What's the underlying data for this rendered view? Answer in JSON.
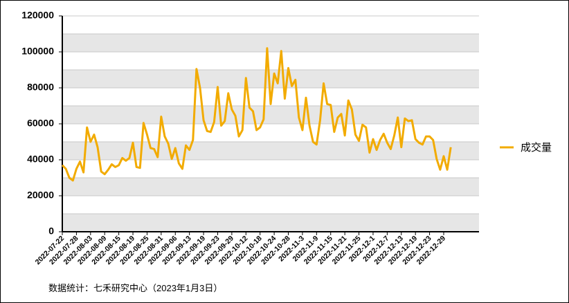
{
  "chart_data": {
    "type": "line",
    "categories": [
      "2022-07-22",
      null,
      null,
      null,
      "2022-07-28",
      null,
      null,
      null,
      "2022-08-03",
      null,
      null,
      null,
      "2022-08-09",
      null,
      null,
      null,
      "2022-08-15",
      null,
      null,
      null,
      "2022-08-19",
      null,
      null,
      null,
      "2022-08-25",
      null,
      null,
      null,
      "2022-08-31",
      null,
      null,
      null,
      "2022-09-06",
      null,
      null,
      null,
      "2022-09-13",
      null,
      null,
      null,
      "2022-09-19",
      null,
      null,
      null,
      "2022-09-23",
      null,
      null,
      null,
      "2022-09-29",
      null,
      null,
      null,
      "2022-10-12",
      null,
      null,
      null,
      "2022-10-18",
      null,
      null,
      null,
      "2022-10-24",
      null,
      null,
      null,
      "2022-10-28",
      null,
      null,
      null,
      "2022-11-3",
      null,
      null,
      null,
      "2022-11-9",
      null,
      null,
      null,
      "2022-11-15",
      null,
      null,
      null,
      "2022-11-21",
      null,
      null,
      null,
      "2022-11-25",
      null,
      null,
      null,
      "2022-12-1",
      null,
      null,
      null,
      "2022-12-7",
      null,
      null,
      null,
      "2022-12-13",
      null,
      null,
      null,
      "2022-12-19",
      null,
      null,
      null,
      "2022-12-23",
      null,
      null,
      null,
      "2022-12-29",
      null,
      null,
      null,
      null,
      null,
      null,
      null,
      null,
      null,
      null
    ],
    "series": [
      {
        "name": "成交量",
        "color": "#f2ab00",
        "values": [
          37000,
          35000,
          30000,
          28500,
          35000,
          39000,
          33000,
          58000,
          50000,
          54000,
          47000,
          33500,
          32000,
          34500,
          37500,
          36000,
          37000,
          41000,
          39500,
          41000,
          49500,
          36000,
          35500,
          60500,
          54000,
          46500,
          46000,
          41500,
          64000,
          53000,
          49000,
          40500,
          46500,
          38000,
          35000,
          48000,
          45500,
          51000,
          90500,
          80000,
          62000,
          56000,
          55500,
          61000,
          80500,
          59000,
          61500,
          77000,
          68000,
          64500,
          53000,
          56500,
          85500,
          69000,
          67000,
          56500,
          58000,
          62500,
          102000,
          71000,
          88000,
          82500,
          100500,
          74000,
          91000,
          81000,
          84500,
          63500,
          56500,
          74500,
          59000,
          50000,
          48500,
          62000,
          82500,
          71000,
          70500,
          55500,
          63500,
          65500,
          53500,
          73000,
          68000,
          54000,
          50500,
          59500,
          58000,
          44000,
          51500,
          45500,
          51000,
          54500,
          49500,
          46000,
          53500,
          63500,
          47000,
          63000,
          61500,
          62000,
          51500,
          49500,
          48500,
          53000,
          53000,
          51000,
          40500,
          34500,
          42000,
          34500,
          47000,
          null,
          null,
          null,
          null,
          null,
          null,
          null,
          null
        ]
      }
    ],
    "ylim": [
      0,
      120000
    ],
    "yticks": [
      0,
      20000,
      40000,
      60000,
      80000,
      100000,
      120000
    ],
    "grid": true,
    "legend": "right",
    "source": "数据统计：七禾研究中心（2023年1月3日）"
  }
}
